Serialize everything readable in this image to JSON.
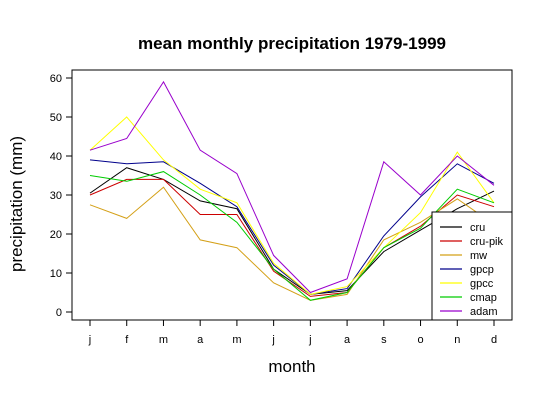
{
  "chart_data": {
    "type": "line",
    "title": "mean monthly precipitation 1979-1999",
    "xlabel": "month",
    "ylabel": "precipitation (mm)",
    "categories": [
      "j",
      "f",
      "m",
      "a",
      "m",
      "j",
      "j",
      "a",
      "s",
      "o",
      "n",
      "d"
    ],
    "yticks": [
      0,
      10,
      20,
      30,
      40,
      50,
      60
    ],
    "ylim": [
      0,
      61
    ],
    "grid": false,
    "legend_position": "bottom-right",
    "series": [
      {
        "name": "cru",
        "color": "#000000",
        "values": [
          30.5,
          37.0,
          34.0,
          28.5,
          26.5,
          11.0,
          4.5,
          5.5,
          15.5,
          21.0,
          26.5,
          31.0
        ]
      },
      {
        "name": "cru-pik",
        "color": "#cc0000",
        "values": [
          30.0,
          34.0,
          34.0,
          25.0,
          25.0,
          10.5,
          4.0,
          5.0,
          16.5,
          22.0,
          30.0,
          27.0
        ]
      },
      {
        "name": "mw",
        "color": "#d4a017",
        "values": [
          27.5,
          24.0,
          32.0,
          18.5,
          16.5,
          7.5,
          3.0,
          4.5,
          18.5,
          23.0,
          29.0,
          22.5
        ]
      },
      {
        "name": "gpcp",
        "color": "#00008b",
        "values": [
          39.0,
          38.0,
          38.5,
          33.0,
          27.0,
          12.0,
          4.5,
          6.0,
          19.5,
          29.5,
          38.0,
          33.0
        ]
      },
      {
        "name": "gpcc",
        "color": "#ffff00",
        "values": [
          41.5,
          50.0,
          39.0,
          31.5,
          28.0,
          12.5,
          4.5,
          6.5,
          16.5,
          25.5,
          41.0,
          28.0
        ]
      },
      {
        "name": "cmap",
        "color": "#00cc00",
        "values": [
          35.0,
          33.5,
          36.0,
          30.0,
          23.0,
          11.0,
          3.0,
          5.0,
          16.5,
          21.5,
          31.5,
          28.0
        ]
      },
      {
        "name": "adam",
        "color": "#9900cc",
        "values": [
          41.5,
          44.5,
          59.0,
          41.5,
          35.5,
          14.5,
          5.0,
          8.5,
          38.5,
          30.0,
          40.0,
          32.5
        ]
      }
    ]
  }
}
